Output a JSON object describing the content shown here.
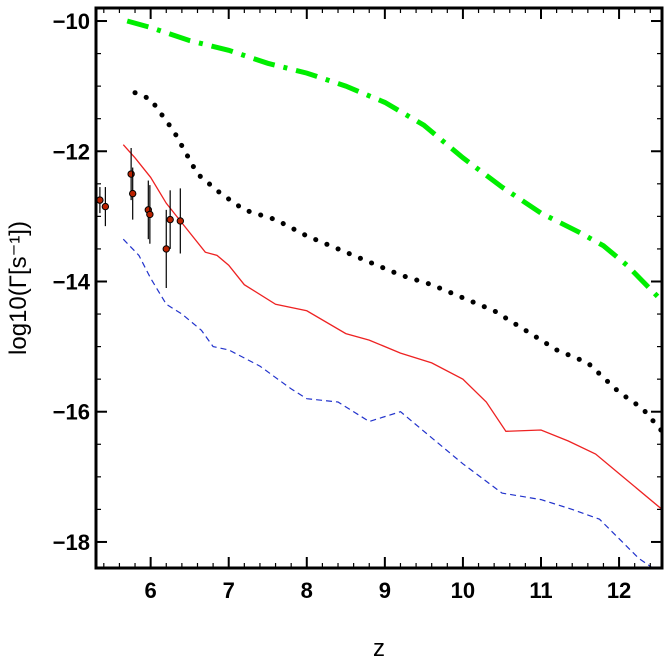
{
  "chart_data": {
    "type": "line",
    "title": "",
    "xlabel": "z",
    "ylabel": "log10(Γ[s⁻¹])",
    "xlim": [
      5.3,
      12.55
    ],
    "ylim": [
      -18.4,
      -9.8
    ],
    "x_ticks": [
      6,
      7,
      8,
      9,
      10,
      11,
      12
    ],
    "y_ticks": [
      -10,
      -12,
      -14,
      -16,
      -18
    ],
    "x_tick_labels": [
      "6",
      "7",
      "8",
      "9",
      "10",
      "11",
      "12"
    ],
    "y_tick_labels": [
      "−10",
      "−12",
      "−14",
      "−16",
      "−18"
    ],
    "grid": false,
    "legend": "none",
    "series": [
      {
        "style": "dash-dot",
        "color": "#00ee00",
        "x": [
          5.7,
          6.0,
          6.5,
          7.0,
          7.5,
          8.0,
          8.5,
          9.0,
          9.5,
          10.0,
          10.5,
          11.0,
          11.5,
          11.8,
          12.1,
          12.55
        ],
        "y": [
          -10.0,
          -10.1,
          -10.3,
          -10.45,
          -10.65,
          -10.8,
          -11.0,
          -11.25,
          -11.6,
          -12.1,
          -12.55,
          -12.95,
          -13.25,
          -13.45,
          -13.75,
          -14.3
        ]
      },
      {
        "style": "dotted",
        "color": "#000000",
        "x": [
          5.8,
          6.0,
          6.3,
          6.6,
          6.9,
          7.2,
          7.6,
          8.0,
          8.4,
          8.8,
          9.2,
          9.6,
          10.0,
          10.4,
          10.8,
          11.2,
          11.6,
          12.0,
          12.3,
          12.55
        ],
        "y": [
          -11.1,
          -11.2,
          -11.7,
          -12.35,
          -12.65,
          -12.9,
          -13.05,
          -13.3,
          -13.5,
          -13.7,
          -13.9,
          -14.05,
          -14.25,
          -14.45,
          -14.75,
          -15.05,
          -15.25,
          -15.7,
          -15.95,
          -16.3
        ]
      },
      {
        "style": "solid",
        "color": "#ee2222",
        "x": [
          5.65,
          5.8,
          6.0,
          6.2,
          6.4,
          6.7,
          6.85,
          7.0,
          7.2,
          7.6,
          8.0,
          8.5,
          8.8,
          9.2,
          9.6,
          10.0,
          10.3,
          10.55,
          11.0,
          11.35,
          11.7,
          12.0,
          12.55
        ],
        "y": [
          -11.9,
          -12.1,
          -12.4,
          -12.8,
          -13.1,
          -13.55,
          -13.6,
          -13.75,
          -14.05,
          -14.35,
          -14.45,
          -14.8,
          -14.9,
          -15.1,
          -15.25,
          -15.5,
          -15.85,
          -16.3,
          -16.28,
          -16.45,
          -16.65,
          -16.95,
          -17.5
        ]
      },
      {
        "style": "dashed",
        "color": "#2233cc",
        "x": [
          5.65,
          5.85,
          6.0,
          6.2,
          6.4,
          6.65,
          6.8,
          7.0,
          7.4,
          7.8,
          8.0,
          8.4,
          8.8,
          9.2,
          9.6,
          10.0,
          10.5,
          11.0,
          11.4,
          11.75,
          12.0,
          12.25,
          12.55
        ],
        "y": [
          -13.35,
          -13.6,
          -13.95,
          -14.35,
          -14.5,
          -14.75,
          -15.0,
          -15.05,
          -15.3,
          -15.65,
          -15.8,
          -15.85,
          -16.15,
          -16.0,
          -16.4,
          -16.8,
          -17.25,
          -17.35,
          -17.5,
          -17.65,
          -17.95,
          -18.25,
          -18.5
        ]
      }
    ],
    "observations": {
      "marker_color": "#bb2200",
      "points": [
        {
          "x": 5.35,
          "y": -12.75,
          "err": 0.2
        },
        {
          "x": 5.42,
          "y": -12.85,
          "err": 0.3
        },
        {
          "x": 5.75,
          "y": -12.35,
          "err": 0.4
        },
        {
          "x": 5.77,
          "y": -12.65,
          "err": 0.4
        },
        {
          "x": 5.97,
          "y": -12.9,
          "err": 0.45
        },
        {
          "x": 5.99,
          "y": -12.97,
          "err": 0.45
        },
        {
          "x": 6.2,
          "y": -13.5,
          "err": 0.6
        },
        {
          "x": 6.25,
          "y": -13.05,
          "err": 0.45
        },
        {
          "x": 6.38,
          "y": -13.07,
          "err": 0.5
        }
      ]
    }
  }
}
